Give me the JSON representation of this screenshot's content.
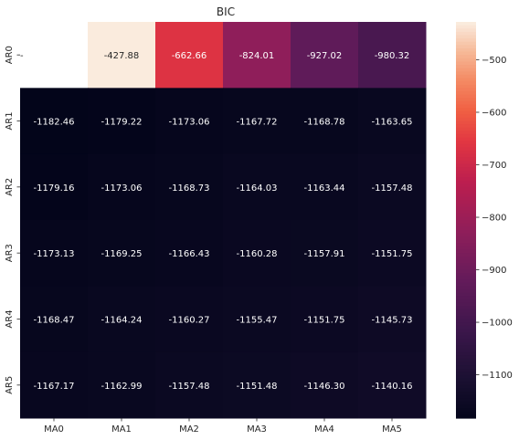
{
  "chart_data": {
    "type": "heatmap",
    "title": "BIC",
    "xlabel": "",
    "ylabel": "",
    "x_categories": [
      "MA0",
      "MA1",
      "MA2",
      "MA3",
      "MA4",
      "MA5"
    ],
    "y_categories": [
      "AR0",
      "AR1",
      "AR2",
      "AR3",
      "AR4",
      "AR5"
    ],
    "values": [
      [
        null,
        -427.88,
        -662.66,
        -824.01,
        -927.02,
        -980.32
      ],
      [
        -1182.46,
        -1179.22,
        -1173.06,
        -1167.72,
        -1168.78,
        -1163.65
      ],
      [
        -1179.16,
        -1173.06,
        -1168.73,
        -1164.03,
        -1163.44,
        -1157.48
      ],
      [
        -1173.13,
        -1169.25,
        -1166.43,
        -1160.28,
        -1157.91,
        -1151.75
      ],
      [
        -1168.47,
        -1164.24,
        -1160.27,
        -1155.47,
        -1151.75,
        -1145.73
      ],
      [
        -1167.17,
        -1162.99,
        -1157.48,
        -1151.48,
        -1146.3,
        -1140.16
      ]
    ],
    "missing_label": "-",
    "colormap": "rocket",
    "vmin": -1182.46,
    "vmax": -427.88,
    "colorbar": {
      "ticks": [
        -500,
        -600,
        -700,
        -800,
        -900,
        -1000,
        -1100
      ],
      "tick_labels": [
        "−500",
        "−600",
        "−700",
        "−800",
        "−900",
        "−1000",
        "−1100"
      ]
    },
    "grid": false,
    "legend": "colorbar-right"
  }
}
